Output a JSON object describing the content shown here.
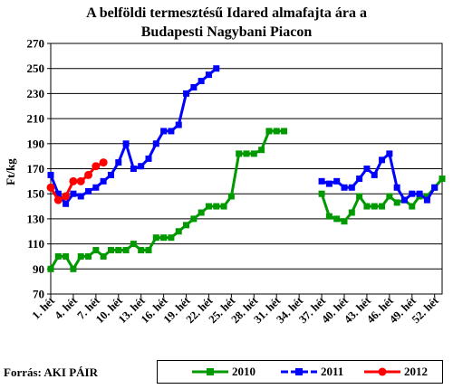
{
  "title_line1": "A belföldi termesztésű Idared almafajta ára a",
  "title_line2": "Budapesti Nagybani Piacon",
  "source": "Forrás: AKI PÁIR",
  "chart_data": {
    "type": "line",
    "title": "A belföldi termesztésű Idared almafajta ára a Budapesti Nagybani Piacon",
    "xlabel": "",
    "ylabel": "Ft/kg",
    "ylim": [
      70,
      270
    ],
    "yticks": [
      70,
      90,
      110,
      130,
      150,
      170,
      190,
      210,
      230,
      250,
      270
    ],
    "xlim": [
      1,
      53
    ],
    "xtick_labels": [
      "1. hét",
      "4. hét",
      "7. hét",
      "10. hét",
      "13. hét",
      "16. hét",
      "19. hét",
      "22. hét",
      "25. hét",
      "28. hét",
      "31. hét",
      "34. hét",
      "37. hét",
      "40. hét",
      "43. hét",
      "46. hét",
      "49. hét",
      "52. hét"
    ],
    "xtick_weeks": [
      1,
      4,
      7,
      10,
      13,
      16,
      19,
      22,
      25,
      28,
      31,
      34,
      37,
      40,
      43,
      46,
      49,
      52
    ],
    "grid": "horizontal",
    "legend_position": "bottom",
    "series": [
      {
        "name": "2010",
        "color": "#009900",
        "marker": "square",
        "segments": [
          [
            [
              1,
              90
            ],
            [
              2,
              100
            ],
            [
              3,
              100
            ],
            [
              4,
              90
            ],
            [
              5,
              100
            ],
            [
              6,
              100
            ],
            [
              7,
              105
            ],
            [
              8,
              100
            ],
            [
              9,
              105
            ],
            [
              10,
              105
            ],
            [
              11,
              105
            ],
            [
              12,
              110
            ],
            [
              13,
              105
            ],
            [
              14,
              105
            ],
            [
              15,
              115
            ],
            [
              16,
              115
            ],
            [
              17,
              115
            ],
            [
              18,
              120
            ],
            [
              19,
              125
            ],
            [
              20,
              130
            ],
            [
              21,
              135
            ],
            [
              22,
              140
            ],
            [
              23,
              140
            ],
            [
              24,
              140
            ],
            [
              25,
              148
            ],
            [
              26,
              182
            ],
            [
              27,
              182
            ],
            [
              28,
              182
            ],
            [
              29,
              185
            ],
            [
              30,
              200
            ],
            [
              31,
              200
            ],
            [
              32,
              200
            ]
          ],
          [
            [
              37,
              150
            ],
            [
              38,
              132
            ],
            [
              39,
              130
            ],
            [
              40,
              128
            ],
            [
              41,
              135
            ],
            [
              42,
              148
            ],
            [
              43,
              140
            ],
            [
              44,
              140
            ],
            [
              45,
              140
            ],
            [
              46,
              148
            ],
            [
              47,
              143
            ],
            [
              48,
              145
            ],
            [
              49,
              140
            ],
            [
              50,
              148
            ],
            [
              51,
              148
            ],
            [
              52,
              155
            ],
            [
              53,
              162
            ]
          ]
        ]
      },
      {
        "name": "2011",
        "color": "#0000ff",
        "marker": "square",
        "segments": [
          [
            [
              1,
              165
            ],
            [
              2,
              150
            ],
            [
              3,
              142
            ],
            [
              4,
              150
            ],
            [
              5,
              148
            ],
            [
              6,
              152
            ],
            [
              7,
              155
            ],
            [
              8,
              160
            ],
            [
              9,
              165
            ],
            [
              10,
              175
            ],
            [
              11,
              190
            ],
            [
              12,
              170
            ],
            [
              13,
              172
            ],
            [
              14,
              178
            ],
            [
              15,
              190
            ],
            [
              16,
              200
            ],
            [
              17,
              200
            ],
            [
              18,
              205
            ],
            [
              19,
              230
            ],
            [
              20,
              235
            ],
            [
              21,
              240
            ],
            [
              22,
              245
            ],
            [
              23,
              250
            ]
          ],
          [
            [
              37,
              160
            ],
            [
              38,
              158
            ],
            [
              39,
              160
            ],
            [
              40,
              155
            ],
            [
              41,
              155
            ],
            [
              42,
              162
            ],
            [
              43,
              170
            ],
            [
              44,
              165
            ],
            [
              45,
              177
            ],
            [
              46,
              182
            ],
            [
              47,
              155
            ],
            [
              48,
              145
            ],
            [
              49,
              150
            ],
            [
              50,
              150
            ],
            [
              51,
              145
            ],
            [
              52,
              155
            ]
          ]
        ]
      },
      {
        "name": "2012",
        "color": "#ff0000",
        "marker": "circle",
        "segments": [
          [
            [
              1,
              155
            ],
            [
              2,
              145
            ],
            [
              3,
              148
            ],
            [
              4,
              160
            ],
            [
              5,
              160
            ],
            [
              6,
              165
            ],
            [
              7,
              172
            ],
            [
              8,
              175
            ]
          ]
        ]
      }
    ]
  }
}
